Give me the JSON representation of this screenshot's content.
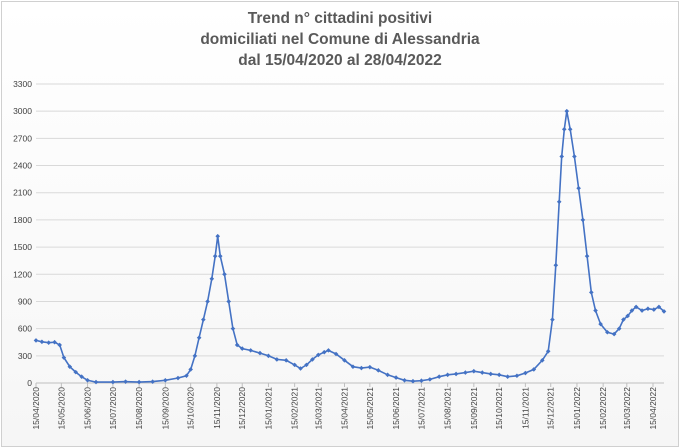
{
  "chart_data": {
    "type": "line",
    "title_lines": [
      "Trend n° cittadini positivi",
      "domiciliati nel Comune di Alessandria",
      "dal 15/04/2020 al 28/04/2022"
    ],
    "xlabel": "",
    "ylabel": "",
    "ylim": [
      0,
      3300
    ],
    "yticks": [
      0,
      300,
      600,
      900,
      1200,
      1500,
      1800,
      2100,
      2400,
      2700,
      3000,
      3300
    ],
    "xticks": [
      "15/04/2020",
      "15/05/2020",
      "15/06/2020",
      "15/07/2020",
      "15/08/2020",
      "15/09/2020",
      "15/10/2020",
      "15/11/2020",
      "15/12/2020",
      "15/01/2021",
      "15/02/2021",
      "15/03/2021",
      "15/04/2021",
      "15/05/2021",
      "15/06/2021",
      "15/07/2021",
      "15/08/2021",
      "15/09/2021",
      "15/10/2021",
      "15/11/2021",
      "15/12/2021",
      "15/01/2022",
      "15/02/2022",
      "15/03/2022",
      "15/04/2022"
    ],
    "grid": true,
    "legend": "none",
    "series_color": "#4472c4",
    "series": [
      {
        "points": [
          [
            "2020-04-15",
            470
          ],
          [
            "2020-04-22",
            455
          ],
          [
            "2020-04-30",
            445
          ],
          [
            "2020-05-07",
            450
          ],
          [
            "2020-05-13",
            420
          ],
          [
            "2020-05-18",
            280
          ],
          [
            "2020-05-25",
            180
          ],
          [
            "2020-06-01",
            120
          ],
          [
            "2020-06-08",
            70
          ],
          [
            "2020-06-15",
            30
          ],
          [
            "2020-06-25",
            10
          ],
          [
            "2020-07-15",
            10
          ],
          [
            "2020-07-30",
            15
          ],
          [
            "2020-08-15",
            10
          ],
          [
            "2020-08-31",
            15
          ],
          [
            "2020-09-15",
            30
          ],
          [
            "2020-09-30",
            55
          ],
          [
            "2020-10-10",
            80
          ],
          [
            "2020-10-15",
            150
          ],
          [
            "2020-10-20",
            300
          ],
          [
            "2020-10-25",
            500
          ],
          [
            "2020-10-30",
            700
          ],
          [
            "2020-11-04",
            900
          ],
          [
            "2020-11-09",
            1150
          ],
          [
            "2020-11-13",
            1400
          ],
          [
            "2020-11-16",
            1620
          ],
          [
            "2020-11-19",
            1400
          ],
          [
            "2020-11-24",
            1200
          ],
          [
            "2020-11-29",
            900
          ],
          [
            "2020-12-04",
            600
          ],
          [
            "2020-12-09",
            420
          ],
          [
            "2020-12-15",
            380
          ],
          [
            "2020-12-25",
            360
          ],
          [
            "2021-01-05",
            330
          ],
          [
            "2021-01-15",
            300
          ],
          [
            "2021-01-25",
            260
          ],
          [
            "2021-02-05",
            250
          ],
          [
            "2021-02-15",
            200
          ],
          [
            "2021-02-22",
            160
          ],
          [
            "2021-03-01",
            200
          ],
          [
            "2021-03-08",
            260
          ],
          [
            "2021-03-15",
            310
          ],
          [
            "2021-03-22",
            340
          ],
          [
            "2021-03-27",
            360
          ],
          [
            "2021-04-05",
            320
          ],
          [
            "2021-04-15",
            250
          ],
          [
            "2021-04-25",
            180
          ],
          [
            "2021-05-05",
            165
          ],
          [
            "2021-05-15",
            175
          ],
          [
            "2021-05-25",
            140
          ],
          [
            "2021-06-05",
            90
          ],
          [
            "2021-06-15",
            60
          ],
          [
            "2021-06-25",
            30
          ],
          [
            "2021-07-05",
            20
          ],
          [
            "2021-07-15",
            25
          ],
          [
            "2021-07-25",
            40
          ],
          [
            "2021-08-05",
            70
          ],
          [
            "2021-08-15",
            90
          ],
          [
            "2021-08-25",
            100
          ],
          [
            "2021-09-05",
            115
          ],
          [
            "2021-09-15",
            130
          ],
          [
            "2021-09-25",
            115
          ],
          [
            "2021-10-05",
            100
          ],
          [
            "2021-10-15",
            90
          ],
          [
            "2021-10-25",
            70
          ],
          [
            "2021-11-05",
            80
          ],
          [
            "2021-11-15",
            110
          ],
          [
            "2021-11-25",
            150
          ],
          [
            "2021-12-05",
            250
          ],
          [
            "2021-12-12",
            350
          ],
          [
            "2021-12-17",
            700
          ],
          [
            "2021-12-21",
            1300
          ],
          [
            "2021-12-25",
            2000
          ],
          [
            "2021-12-28",
            2500
          ],
          [
            "2021-12-31",
            2800
          ],
          [
            "2022-01-03",
            3000
          ],
          [
            "2022-01-07",
            2800
          ],
          [
            "2022-01-12",
            2500
          ],
          [
            "2022-01-17",
            2150
          ],
          [
            "2022-01-22",
            1800
          ],
          [
            "2022-01-27",
            1400
          ],
          [
            "2022-02-01",
            1000
          ],
          [
            "2022-02-06",
            800
          ],
          [
            "2022-02-12",
            650
          ],
          [
            "2022-02-20",
            560
          ],
          [
            "2022-02-28",
            540
          ],
          [
            "2022-03-06",
            600
          ],
          [
            "2022-03-11",
            700
          ],
          [
            "2022-03-16",
            740
          ],
          [
            "2022-03-21",
            800
          ],
          [
            "2022-03-26",
            840
          ],
          [
            "2022-04-02",
            800
          ],
          [
            "2022-04-09",
            820
          ],
          [
            "2022-04-16",
            810
          ],
          [
            "2022-04-22",
            840
          ],
          [
            "2022-04-28",
            790
          ]
        ]
      }
    ]
  }
}
